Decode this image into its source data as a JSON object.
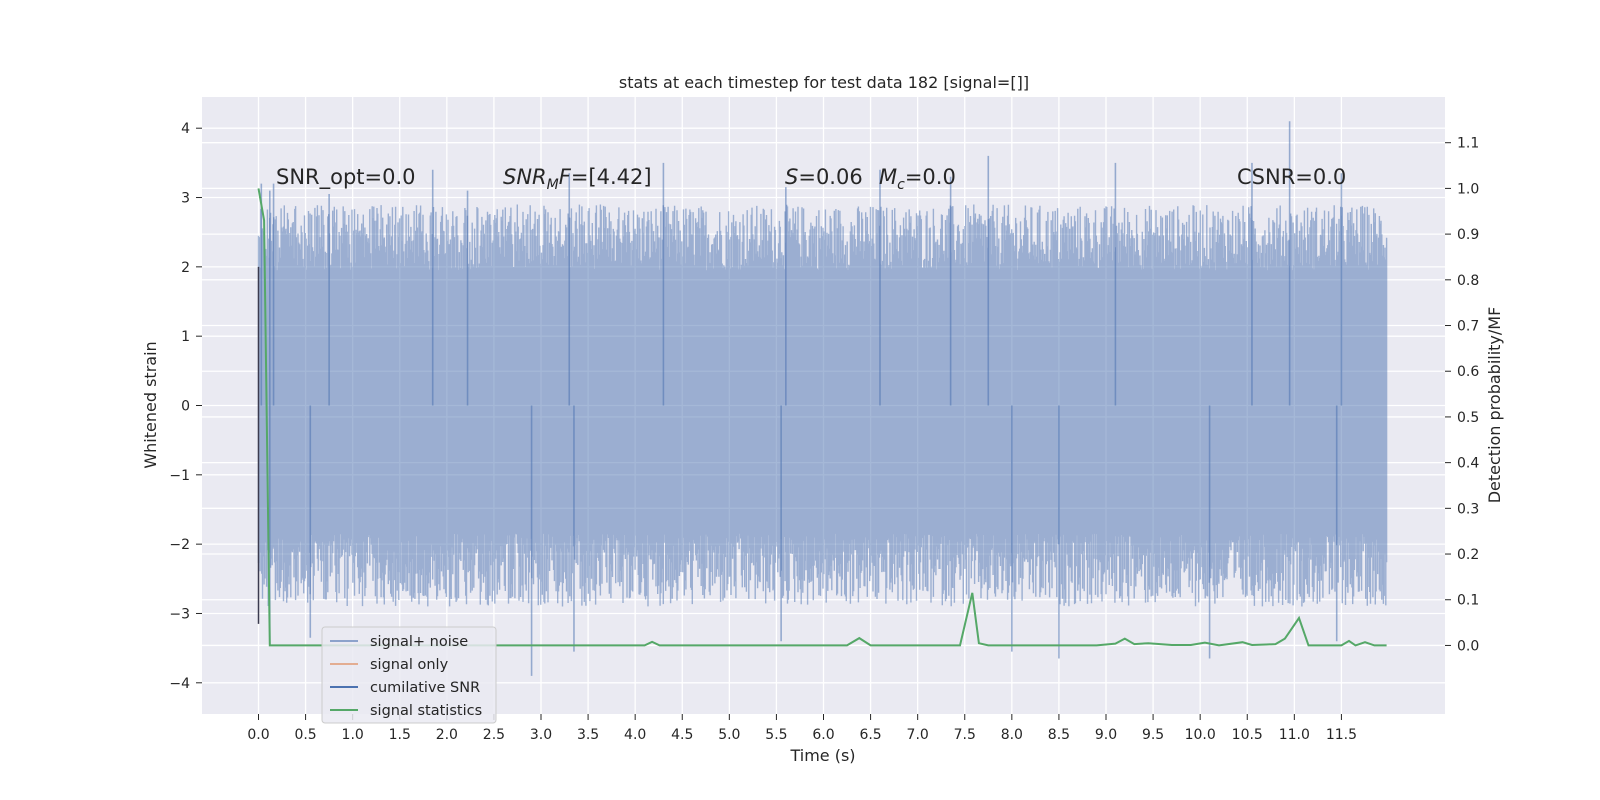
{
  "chart_data": {
    "type": "line",
    "title": "stats at each timestep for test data 182 [signal=[]]",
    "xlabel": "Time (s)",
    "ylabel_left": "Whitened strain",
    "ylabel_right": "Detection probability/MF",
    "xlim": [
      -0.6,
      12.6
    ],
    "ylim_left": [
      -4.45,
      4.45
    ],
    "ylim_right": [
      -0.15,
      1.2
    ],
    "x_ticks": [
      0.0,
      0.5,
      1.0,
      1.5,
      2.0,
      2.5,
      3.0,
      3.5,
      4.0,
      4.5,
      5.0,
      5.5,
      6.0,
      6.5,
      7.0,
      7.5,
      8.0,
      8.5,
      9.0,
      9.5,
      10.0,
      10.5,
      11.0,
      11.5
    ],
    "x_tick_labels": [
      "0.0",
      "0.5",
      "1.0",
      "1.5",
      "2.0",
      "2.5",
      "3.0",
      "3.5",
      "4.0",
      "4.5",
      "5.0",
      "5.5",
      "6.0",
      "6.5",
      "7.0",
      "7.5",
      "8.0",
      "8.5",
      "9.0",
      "9.5",
      "10.0",
      "10.5",
      "11.0",
      "11.5"
    ],
    "y_left_ticks": [
      -4,
      -3,
      -2,
      -1,
      0,
      1,
      2,
      3,
      4
    ],
    "y_left_tick_labels": [
      "−4",
      "−3",
      "−2",
      "−1",
      "0",
      "1",
      "2",
      "3",
      "4"
    ],
    "y_right_ticks": [
      0.0,
      0.1,
      0.2,
      0.3,
      0.4,
      0.5,
      0.6,
      0.7,
      0.8,
      0.9,
      1.0,
      1.1
    ],
    "y_right_tick_labels": [
      "0.0",
      "0.1",
      "0.2",
      "0.3",
      "0.4",
      "0.5",
      "0.6",
      "0.7",
      "0.8",
      "0.9",
      "1.0",
      "1.1"
    ],
    "grid": true,
    "legend_position": "lower-left",
    "colors": {
      "background": "#eaeaf2",
      "grid": "#ffffff",
      "signal_noise": "#4c72b0",
      "signal_only": "#dd8452",
      "cumulative_snr": "#4c72b0",
      "signal_statistics": "#55a868"
    },
    "annotations": [
      {
        "id": "snr_opt",
        "main": "SNR_opt=0.0"
      },
      {
        "id": "snr_mf",
        "main": "SNR",
        "sub": "M",
        "rest": "F=[4.42]"
      },
      {
        "id": "s_val",
        "main": "S",
        "rest": "=0.06"
      },
      {
        "id": "mc_val",
        "main": "M",
        "sub": "c",
        "rest": "=0.0"
      },
      {
        "id": "csnr",
        "main": "CSNR=0.0"
      }
    ],
    "series": [
      {
        "name": "signal+ noise",
        "axis": "left",
        "band_x_range": [
          0.0,
          11.98
        ],
        "band_core": [
          -1.85,
          1.95
        ],
        "band_outer": [
          -2.9,
          2.9
        ],
        "peaks": [
          {
            "x": 0.03,
            "y": 3.2
          },
          {
            "x": 0.12,
            "y": 3.1
          },
          {
            "x": 0.16,
            "y": 3.2
          },
          {
            "x": 0.75,
            "y": 3.05
          },
          {
            "x": 1.85,
            "y": 3.4
          },
          {
            "x": 2.22,
            "y": 3.1
          },
          {
            "x": 3.3,
            "y": 3.35
          },
          {
            "x": 4.3,
            "y": 3.5
          },
          {
            "x": 5.6,
            "y": 3.15
          },
          {
            "x": 6.6,
            "y": 3.4
          },
          {
            "x": 7.35,
            "y": 3.3
          },
          {
            "x": 7.75,
            "y": 3.6
          },
          {
            "x": 9.1,
            "y": 3.5
          },
          {
            "x": 10.55,
            "y": 3.5
          },
          {
            "x": 10.95,
            "y": 4.1
          },
          {
            "x": 11.5,
            "y": 3.35
          }
        ],
        "troughs": [
          {
            "x": 0.12,
            "y": -3.45
          },
          {
            "x": 0.55,
            "y": -3.35
          },
          {
            "x": 2.9,
            "y": -3.9
          },
          {
            "x": 3.35,
            "y": -3.55
          },
          {
            "x": 5.55,
            "y": -3.4
          },
          {
            "x": 8.0,
            "y": -3.55
          },
          {
            "x": 8.5,
            "y": -3.65
          },
          {
            "x": 10.1,
            "y": -3.65
          },
          {
            "x": 11.45,
            "y": -3.4
          }
        ]
      },
      {
        "name": "signal only",
        "axis": "left",
        "x": [],
        "y": []
      },
      {
        "name": "cumilative SNR",
        "axis": "left",
        "x": [],
        "y": []
      },
      {
        "name": "signal statistics",
        "axis": "right",
        "x": [
          0.0,
          0.06,
          0.12,
          0.2,
          1.0,
          2.0,
          3.0,
          4.0,
          4.1,
          4.18,
          4.26,
          4.4,
          5.0,
          6.0,
          6.25,
          6.38,
          6.5,
          7.0,
          7.45,
          7.58,
          7.65,
          7.75,
          8.0,
          8.9,
          9.1,
          9.2,
          9.3,
          9.45,
          9.7,
          9.9,
          10.05,
          10.2,
          10.45,
          10.55,
          10.7,
          10.8,
          10.9,
          11.05,
          11.15,
          11.3,
          11.5,
          11.58,
          11.65,
          11.75,
          11.85,
          11.98
        ],
        "y": [
          1.0,
          0.93,
          0.0,
          0.0,
          0.0,
          0.0,
          0.0,
          0.0,
          0.0,
          0.008,
          0.0,
          0.0,
          0.0,
          0.0,
          0.0,
          0.016,
          0.0,
          0.0,
          0.0,
          0.115,
          0.005,
          0.0,
          0.0,
          0.0,
          0.004,
          0.015,
          0.003,
          0.005,
          0.001,
          0.001,
          0.006,
          0.0,
          0.007,
          0.001,
          0.002,
          0.003,
          0.015,
          0.06,
          0.0,
          0.0,
          0.0,
          0.01,
          0.0,
          0.007,
          0.0,
          0.0
        ]
      }
    ]
  }
}
